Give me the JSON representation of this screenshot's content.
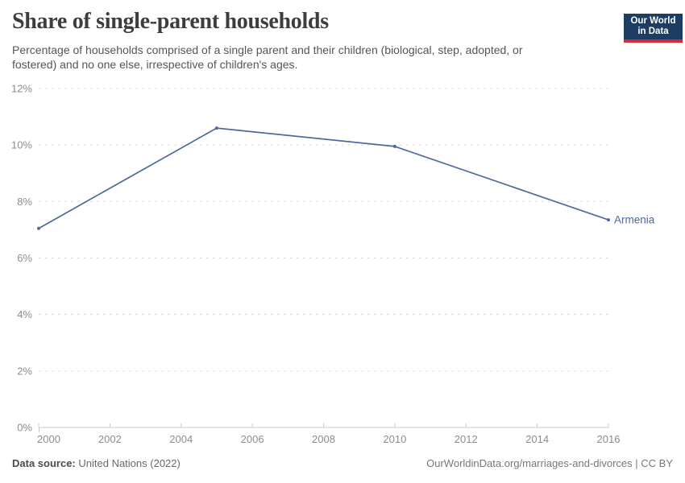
{
  "header": {
    "title": "Share of single-parent households",
    "subtitle": "Percentage of households comprised of a single parent and their children (biological, step, adopted, or fostered) and no one else, irrespective of children's ages.",
    "logo": {
      "line1": "Our World",
      "line2": "in Data",
      "bg_color": "#1d3d63",
      "stripe_color": "#d42b3a"
    }
  },
  "chart_data": {
    "type": "line",
    "title": "Share of single-parent households",
    "x": [
      2000,
      2005,
      2010,
      2016
    ],
    "series": [
      {
        "name": "Armenia",
        "values": [
          7.05,
          10.6,
          9.95,
          7.35
        ],
        "color": "#4c6a9c"
      }
    ],
    "xlabel": "",
    "ylabel": "",
    "xlim": [
      2000,
      2016
    ],
    "ylim": [
      0,
      12
    ],
    "x_ticks": [
      2000,
      2002,
      2004,
      2006,
      2008,
      2010,
      2012,
      2014,
      2016
    ],
    "y_ticks": [
      0,
      2,
      4,
      6,
      8,
      10,
      12
    ],
    "y_tick_suffix": "%",
    "grid": "horizontal-dashed",
    "legend_position": "end-of-line-label",
    "colors": {
      "gridline": "#dcdcdc",
      "axis": "#c8c8c8",
      "tick_label": "#8d8d8d"
    }
  },
  "footer": {
    "source_label": "Data source:",
    "source_value": "United Nations (2022)",
    "link": "OurWorldinData.org/marriages-and-divorces | CC BY"
  }
}
